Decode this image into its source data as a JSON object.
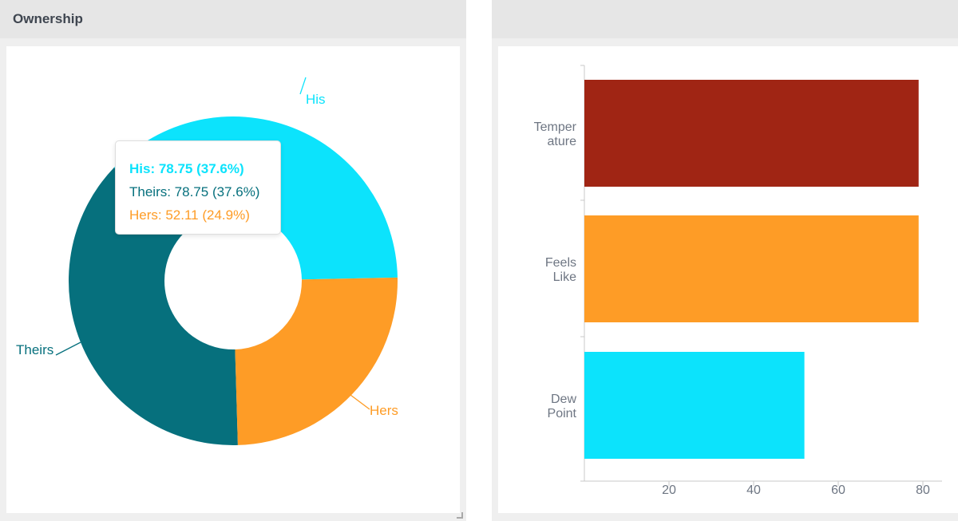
{
  "panels": {
    "left_title": "Ownership",
    "right_title": ""
  },
  "colors": {
    "his": "#0ce3fc",
    "theirs": "#06707d",
    "hers": "#fe9c26",
    "temperature": "#a02514",
    "axis": "#c8c8c8",
    "tick_text": "#6e7683"
  },
  "tooltip": {
    "his": "His: 78.75 (37.6%)",
    "theirs": "Theirs: 78.75 (37.6%)",
    "hers": "Hers: 52.11 (24.9%)"
  },
  "chart_data": [
    {
      "type": "pie",
      "title": "Ownership",
      "donut": true,
      "categories": [
        "His",
        "Theirs",
        "Hers"
      ],
      "values": [
        78.75,
        78.75,
        52.11
      ],
      "percentages": [
        37.6,
        37.6,
        24.9
      ],
      "colors": [
        "#0ce3fc",
        "#06707d",
        "#fe9c26"
      ]
    },
    {
      "type": "bar",
      "orientation": "horizontal",
      "categories": [
        [
          "Temper",
          "ature"
        ],
        [
          "Feels",
          "Like"
        ],
        [
          "Dew",
          "Point"
        ]
      ],
      "values": [
        79,
        79,
        52
      ],
      "colors": [
        "#a02514",
        "#fe9c26",
        "#0ce3fc"
      ],
      "xticks": [
        20,
        40,
        60,
        80
      ],
      "xlim": [
        0,
        80
      ],
      "grid": false
    }
  ]
}
